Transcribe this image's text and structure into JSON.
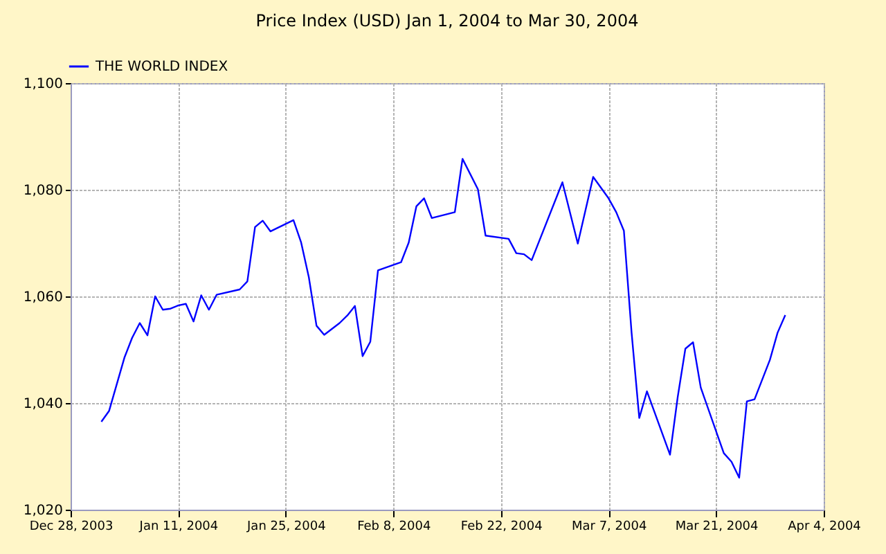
{
  "chart_data": {
    "type": "line",
    "title": "Price Index (USD) Jan 1, 2004 to Mar 30, 2004",
    "x": [
      "2004-01-01",
      "2004-01-02",
      "2004-01-04",
      "2004-01-05",
      "2004-01-06",
      "2004-01-07",
      "2004-01-08",
      "2004-01-09",
      "2004-01-10",
      "2004-01-11",
      "2004-01-12",
      "2004-01-13",
      "2004-01-14",
      "2004-01-15",
      "2004-01-16",
      "2004-01-19",
      "2004-01-20",
      "2004-01-21",
      "2004-01-22",
      "2004-01-23",
      "2004-01-26",
      "2004-01-27",
      "2004-01-28",
      "2004-01-29",
      "2004-01-30",
      "2004-02-01",
      "2004-02-02",
      "2004-02-03",
      "2004-02-04",
      "2004-02-05",
      "2004-02-06",
      "2004-02-09",
      "2004-02-10",
      "2004-02-11",
      "2004-02-12",
      "2004-02-13",
      "2004-02-16",
      "2004-02-17",
      "2004-02-19",
      "2004-02-20",
      "2004-02-23",
      "2004-02-24",
      "2004-02-25",
      "2004-02-26",
      "2004-03-01",
      "2004-03-03",
      "2004-03-05",
      "2004-03-07",
      "2004-03-08",
      "2004-03-09",
      "2004-03-10",
      "2004-03-11",
      "2004-03-12",
      "2004-03-15",
      "2004-03-16",
      "2004-03-17",
      "2004-03-18",
      "2004-03-19",
      "2004-03-22",
      "2004-03-23",
      "2004-03-24",
      "2004-03-25",
      "2004-03-26",
      "2004-03-28",
      "2004-03-29",
      "2004-03-30"
    ],
    "series": [
      {
        "name": "THE WORLD INDEX",
        "color": "#0000ff",
        "values": [
          1036.5,
          1038.5,
          1048.5,
          1052.2,
          1055,
          1052.7,
          1060,
          1057.5,
          1057.7,
          1058.3,
          1058.6,
          1055.3,
          1060.2,
          1057.5,
          1060.3,
          1061.3,
          1062.8,
          1073,
          1074.2,
          1072.2,
          1074.3,
          1070.1,
          1063.6,
          1054.5,
          1052.8,
          1055,
          1056.4,
          1058.2,
          1048.8,
          1051.5,
          1064.9,
          1066.4,
          1070.1,
          1076.9,
          1078.4,
          1074.7,
          1075.8,
          1085.8,
          1080.1,
          1071.4,
          1070.8,
          1068.1,
          1067.9,
          1066.8,
          1081.4,
          1069.9,
          1082.4,
          1078.4,
          1075.8,
          1072.3,
          1053.2,
          1037.2,
          1042.2,
          1030.3,
          1041.1,
          1050.2,
          1051.4,
          1042.9,
          1030.6,
          1029,
          1026,
          1040.3,
          1040.7,
          1048.1,
          1053.2,
          1056.5
        ]
      }
    ],
    "xlim": [
      "2003-12-28",
      "2004-04-04"
    ],
    "xticks": [
      {
        "value": "2003-12-28",
        "label": "Dec 28, 2003"
      },
      {
        "value": "2004-01-11",
        "label": "Jan 11, 2004"
      },
      {
        "value": "2004-01-25",
        "label": "Jan 25, 2004"
      },
      {
        "value": "2004-02-08",
        "label": "Feb 8, 2004"
      },
      {
        "value": "2004-02-22",
        "label": "Feb 22, 2004"
      },
      {
        "value": "2004-03-07",
        "label": "Mar 7, 2004"
      },
      {
        "value": "2004-03-21",
        "label": "Mar 21, 2004"
      },
      {
        "value": "2004-04-04",
        "label": "Apr 4, 2004"
      }
    ],
    "ylim": [
      1020,
      1100
    ],
    "yticks": [
      {
        "value": 1020,
        "label": "1,020"
      },
      {
        "value": 1040,
        "label": "1,040"
      },
      {
        "value": 1060,
        "label": "1,060"
      },
      {
        "value": 1080,
        "label": "1,080"
      },
      {
        "value": 1100,
        "label": "1,100"
      }
    ],
    "grid": true,
    "legend": "top left",
    "marker": "none",
    "line_style": "solid"
  }
}
